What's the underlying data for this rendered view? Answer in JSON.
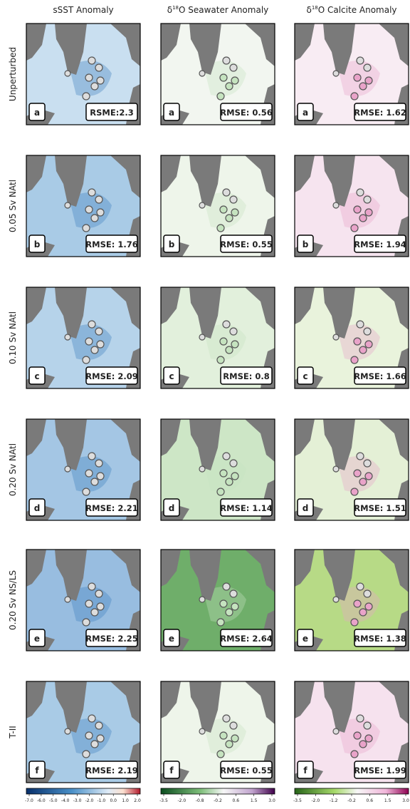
{
  "columns": [
    {
      "title": "sSST Anomaly"
    },
    {
      "prefix": "δ",
      "sup": "18",
      "title": "O Seawater Anomaly"
    },
    {
      "prefix": "δ",
      "sup": "18",
      "title": "O Calcite Anomaly"
    }
  ],
  "rows": [
    {
      "label": "Unperturbed",
      "letter": "a",
      "scores": [
        "RSME:2.3",
        "RMSE: 0.56",
        "RMSE: 1.62"
      ]
    },
    {
      "label": "0.05 Sv NAtl",
      "letter": "b",
      "scores": [
        "RMSE: 1.76",
        "RMSE: 0.55",
        "RMSE: 1.94"
      ]
    },
    {
      "label": "0.10 Sv NAtl",
      "letter": "c",
      "scores": [
        "RMSE: 2.09",
        "RMSE: 0.8",
        "RMSE: 1.66"
      ]
    },
    {
      "label": "0.20 Sv NAtl",
      "letter": "d",
      "scores": [
        "RMSE: 2.21",
        "RMSE: 1.14",
        "RMSE: 1.51"
      ]
    },
    {
      "label": "0.20 Sv NS/LS",
      "letter": "e",
      "scores": [
        "RMSE: 2.25",
        "RMSE: 2.64",
        "RMSE: 1.38"
      ]
    },
    {
      "label": "T-II",
      "letter": "f",
      "scores": [
        "RMSE: 2.19",
        "RMSE: 0.55",
        "RMSE: 1.99"
      ]
    }
  ],
  "colorbars": [
    {
      "ticks": [
        "-7.0",
        "-6.0",
        "-5.0",
        "-4.0",
        "-3.0",
        "-2.0",
        "-1.0",
        "0.0",
        "1.0",
        "2.0"
      ]
    },
    {
      "ticks": [
        "-3.5",
        "-2.0",
        "-0.8",
        "-0.2",
        "0.6",
        "1.5",
        "3.0"
      ]
    },
    {
      "ticks": [
        "-3.5",
        "-2.0",
        "-1.2",
        "-0.2",
        "0.6",
        "1.5",
        "3.0"
      ]
    }
  ]
}
